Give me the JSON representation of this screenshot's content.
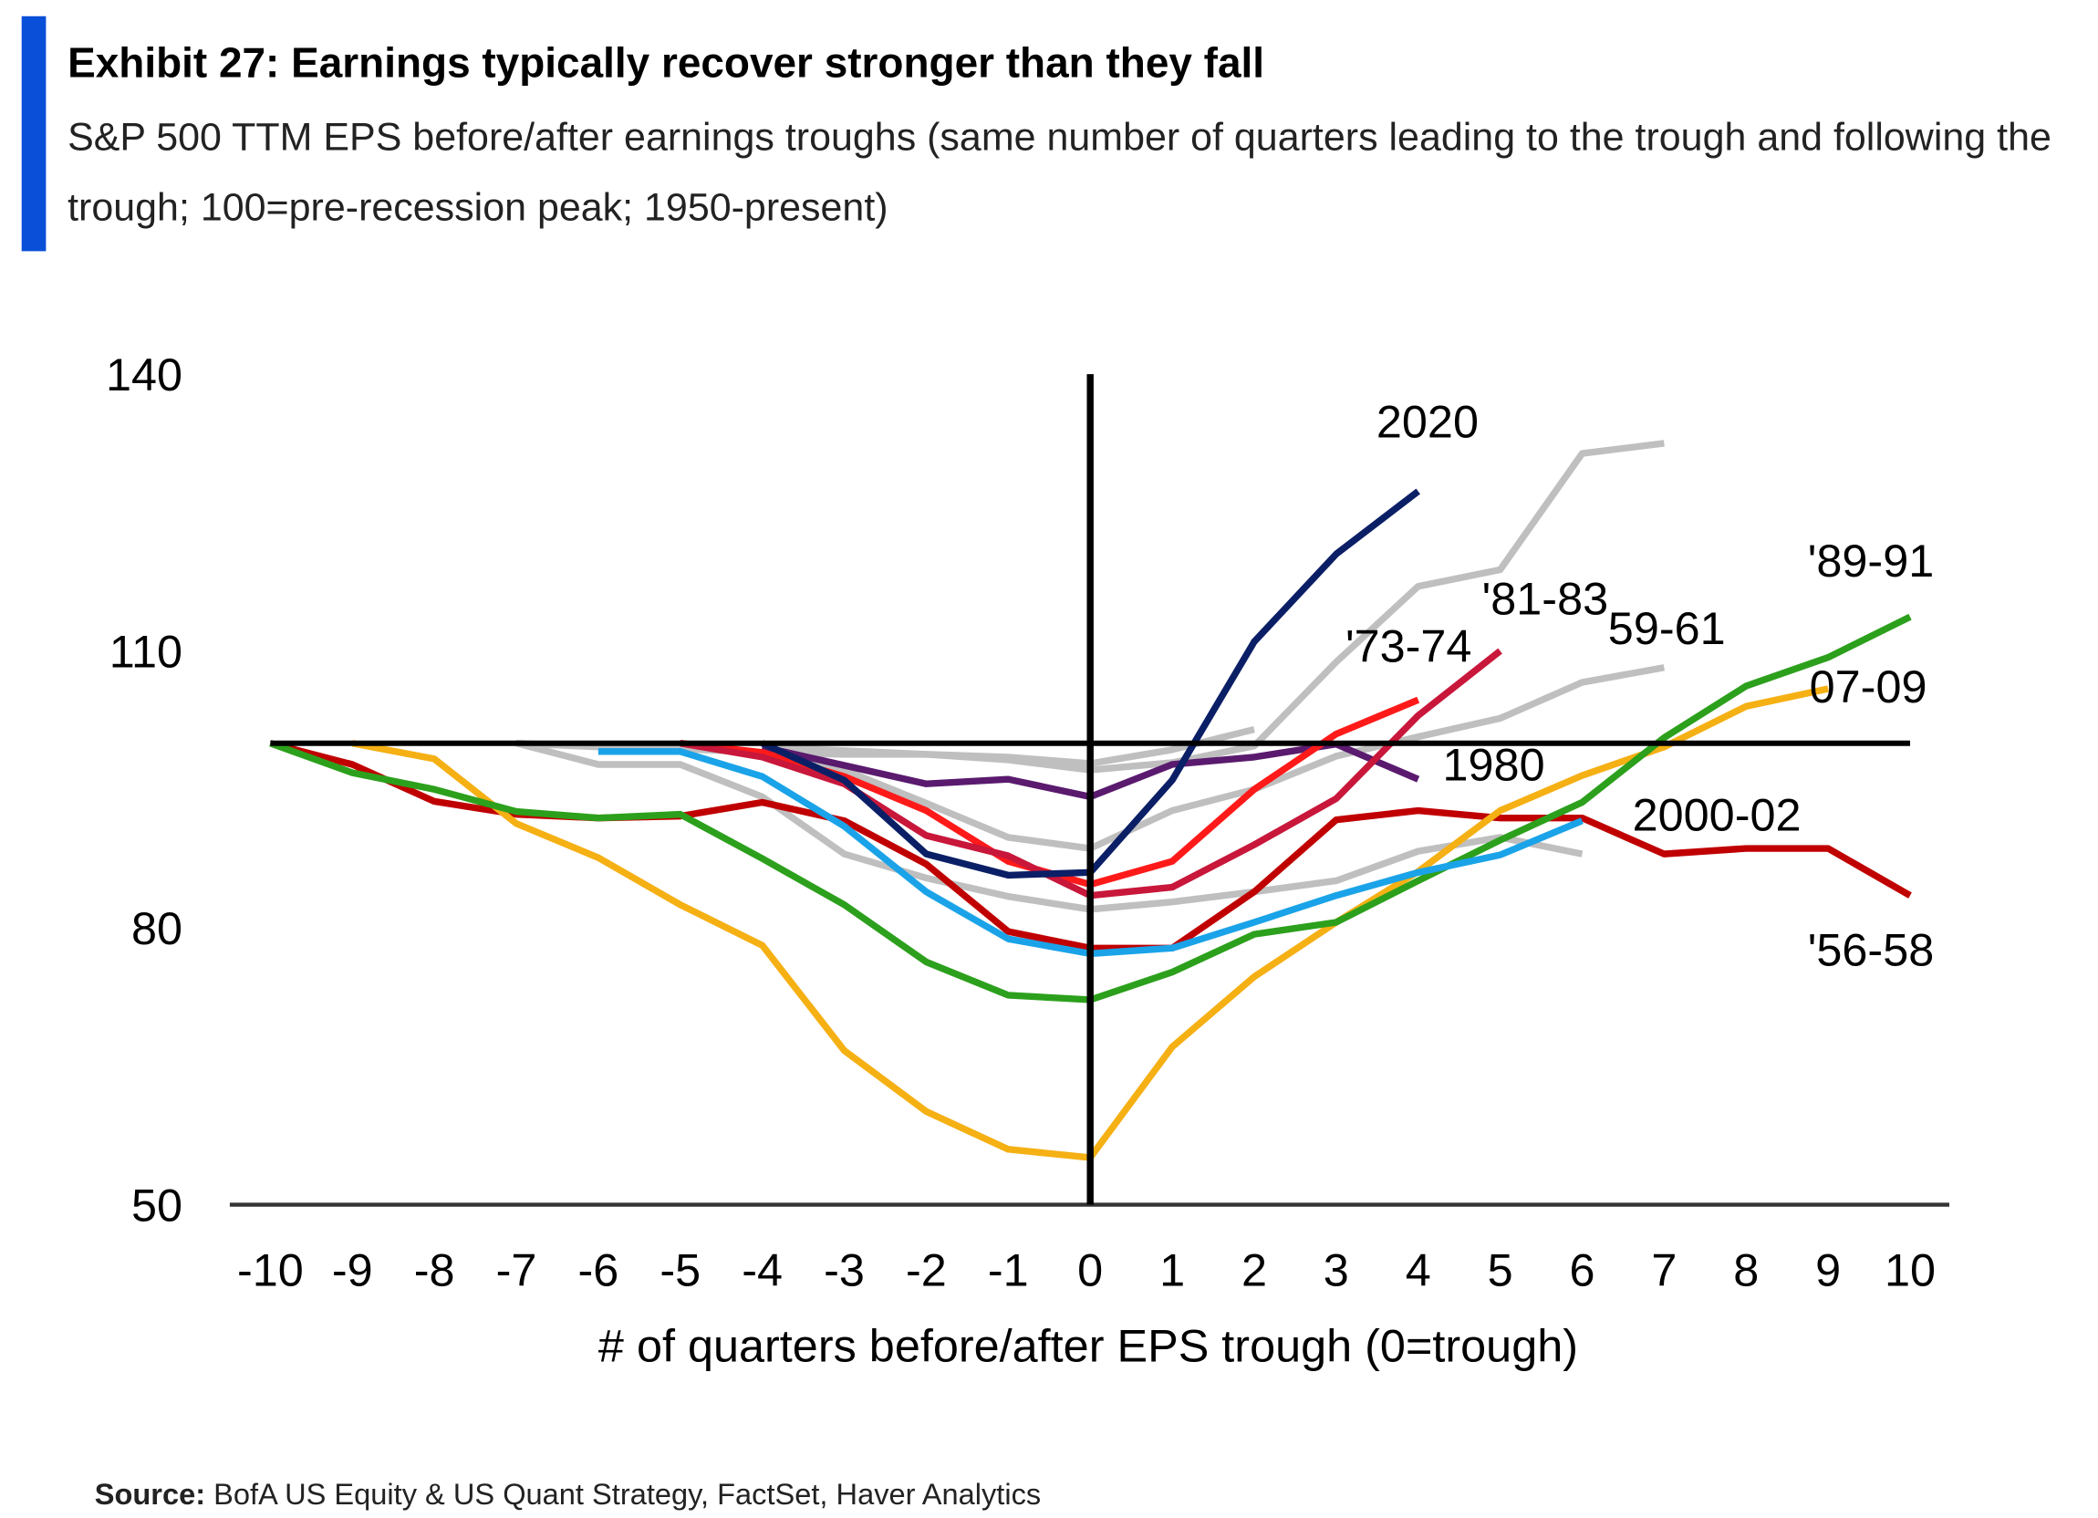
{
  "chart_data": {
    "type": "line",
    "title": "Exhibit 27: Earnings typically recover stronger than they fall",
    "subtitle": "S&P 500 TTM EPS before/after earnings troughs (same number of quarters leading to the trough and following the trough; 100=pre-recession peak; 1950-present)",
    "x_label": "# of quarters before/after EPS trough (0=trough)",
    "source": {
      "label": "Source:",
      "text": "BofA US Equity & US Quant Strategy, FactSet, Haver Analytics"
    },
    "x": [
      -10,
      -9,
      -8,
      -7,
      -6,
      -5,
      -4,
      -3,
      -2,
      -1,
      0,
      1,
      2,
      3,
      4,
      5,
      6,
      7,
      8,
      9,
      10
    ],
    "xlim": [
      -10,
      10
    ],
    "xticks": [
      -10,
      -9,
      -8,
      -7,
      -6,
      -5,
      -4,
      -3,
      -2,
      -1,
      0,
      1,
      2,
      3,
      4,
      5,
      6,
      7,
      8,
      9,
      10
    ],
    "ylim": [
      50,
      140
    ],
    "yticks": [
      50,
      80,
      110,
      140
    ],
    "reference_lines": {
      "y": 100,
      "x": 0
    },
    "series": [
      {
        "name": null,
        "color": "#bfbfbf",
        "values": [
          null,
          null,
          null,
          100,
          99.6,
          99.4,
          99,
          98.8,
          98.8,
          98.2,
          97.1,
          97.9,
          99.7,
          108.8,
          117,
          118.8,
          131.4,
          132.5,
          null,
          null,
          null
        ]
      },
      {
        "name": null,
        "color": "#bfbfbf",
        "values": [
          null,
          null,
          null,
          100,
          97.7,
          97.7,
          94.2,
          88,
          85.4,
          83.4,
          82,
          82.8,
          83.9,
          85.1,
          88.3,
          89.8,
          88,
          null,
          null,
          null,
          null
        ]
      },
      {
        "name": null,
        "color": "#bfbfbf",
        "values": [
          null,
          null,
          null,
          null,
          null,
          null,
          99.6,
          99.2,
          98.8,
          98.5,
          97.8,
          99.3,
          101.5,
          null,
          null,
          null,
          null,
          null,
          null,
          null,
          null
        ]
      },
      {
        "name": "59-61",
        "color": "#bfbfbf",
        "values": [
          null,
          null,
          null,
          null,
          null,
          null,
          99.6,
          97.1,
          93.5,
          89.8,
          88.6,
          92.7,
          95,
          98.6,
          100.7,
          102.7,
          106.6,
          108.2,
          null,
          null,
          null
        ]
      },
      {
        "name": "'56-58",
        "color": "#c00000",
        "values": [
          100,
          97.7,
          93.7,
          92.3,
          91.9,
          92.1,
          93.6,
          91.6,
          86.9,
          79.6,
          77.8,
          77.8,
          83.9,
          91.7,
          92.7,
          91.9,
          91.9,
          88,
          88.6,
          88.6,
          83.5
        ]
      },
      {
        "name": "07-09",
        "color": "#f5b014",
        "values": [
          null,
          100,
          98.3,
          91.3,
          87.6,
          82.5,
          78.1,
          66.7,
          60.1,
          56,
          55.1,
          67.1,
          74.7,
          80.6,
          86.1,
          92.7,
          96.5,
          99.6,
          104,
          105.9,
          null
        ]
      },
      {
        "name": "'89-91",
        "color": "#2ca01c",
        "values": [
          100,
          96.8,
          95,
          92.6,
          91.9,
          92.3,
          87.5,
          82.5,
          76.3,
          72.7,
          72.2,
          75.2,
          79.3,
          80.6,
          85.1,
          89.5,
          93.6,
          100.6,
          106.2,
          109.3,
          113.7
        ]
      },
      {
        "name": "2000-02",
        "color": "#1aa3e8",
        "values": [
          null,
          null,
          null,
          null,
          99.1,
          99.1,
          96.4,
          91,
          83.9,
          78.8,
          77.2,
          77.8,
          80.6,
          83.5,
          86,
          87.9,
          91.6,
          null,
          null,
          null,
          null
        ]
      },
      {
        "name": "1980",
        "color": "#5a1a6e",
        "values": [
          null,
          null,
          null,
          null,
          null,
          null,
          99.6,
          97.6,
          95.6,
          96.1,
          94.2,
          97.7,
          98.5,
          99.9,
          96.1,
          null,
          null,
          null,
          null,
          null,
          null
        ]
      },
      {
        "name": "'73-74",
        "color": "#ff1a1a",
        "values": [
          null,
          null,
          null,
          null,
          null,
          100,
          99,
          96.4,
          92.7,
          87.2,
          84.7,
          87.2,
          95,
          101,
          104.7,
          null,
          null,
          null,
          null,
          null,
          null
        ]
      },
      {
        "name": "'81-83",
        "color": "#c8173a",
        "values": [
          null,
          null,
          null,
          null,
          null,
          100,
          98.5,
          95.6,
          90,
          87.8,
          83.5,
          84.4,
          89,
          94,
          103,
          110,
          null,
          null,
          null,
          null,
          null
        ]
      },
      {
        "name": "2020",
        "color": "#0b1f66",
        "values": [
          null,
          null,
          null,
          null,
          null,
          null,
          100,
          96,
          88,
          85.7,
          86,
          96,
          111,
          120.5,
          127.3,
          null,
          null,
          null,
          null,
          null,
          null
        ]
      }
    ]
  }
}
